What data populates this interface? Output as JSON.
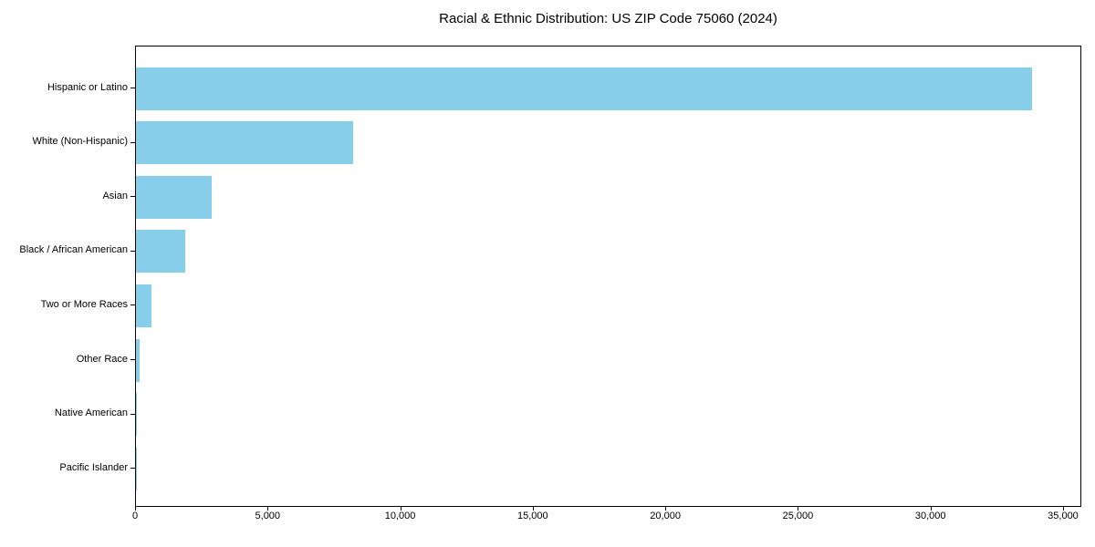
{
  "chart_data": {
    "type": "bar",
    "orientation": "horizontal",
    "title": "Racial & Ethnic Distribution: US ZIP Code 75060 (2024)",
    "categories": [
      "Hispanic or Latino",
      "White (Non-Hispanic)",
      "Asian",
      "Black / African American",
      "Two or More Races",
      "Other Race",
      "Native American",
      "Pacific Islander"
    ],
    "values": [
      33800,
      8200,
      2870,
      1870,
      600,
      150,
      40,
      15
    ],
    "xlabel": "",
    "ylabel": "",
    "xlim": [
      0,
      35620
    ],
    "xticks": [
      0,
      5000,
      10000,
      15000,
      20000,
      25000,
      30000,
      35000
    ],
    "xtick_labels": [
      "0",
      "5,000",
      "10,000",
      "15,000",
      "20,000",
      "25,000",
      "30,000",
      "35,000"
    ],
    "bar_color": "#87CEEB",
    "axis_color": "#000000",
    "text_color": "#000000",
    "grid": false,
    "legend": "none",
    "value_labels": "none"
  }
}
